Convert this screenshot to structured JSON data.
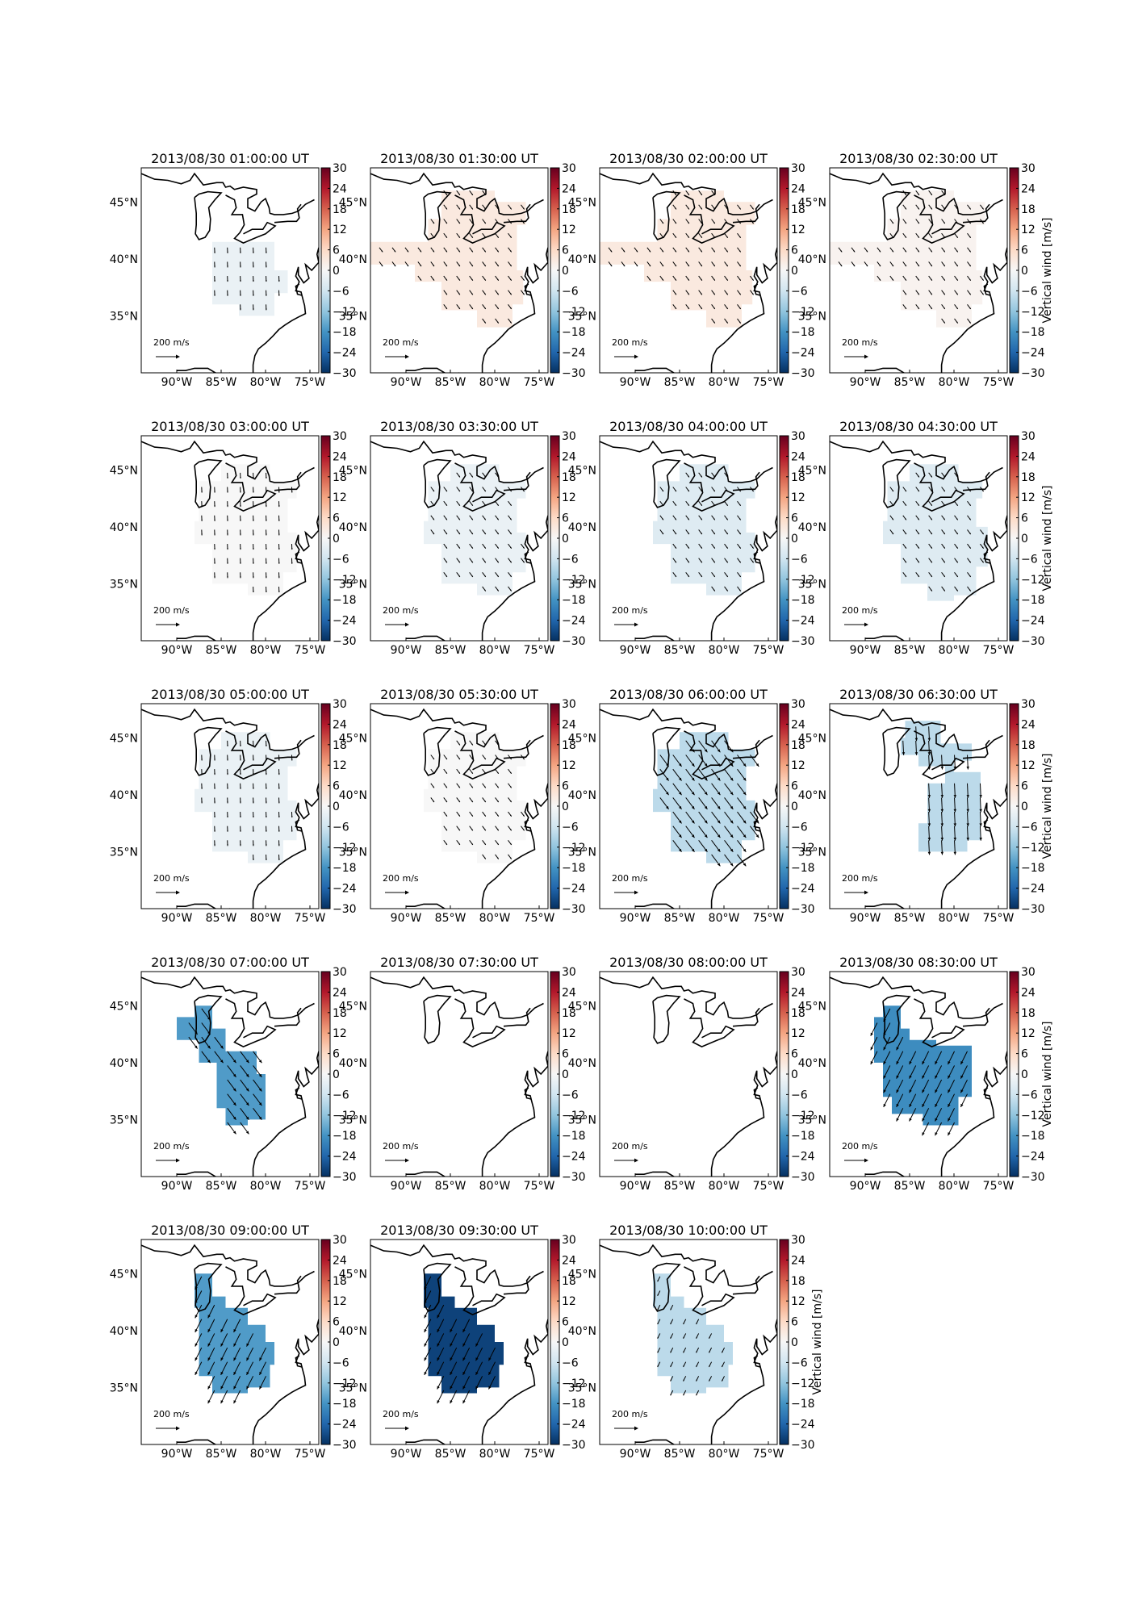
{
  "figure": {
    "colorbar_label": "Vertical wind [m/s]",
    "colorbar_ticks": [
      "30",
      "24",
      "18",
      "12",
      "6",
      "0",
      "−6",
      "−12",
      "−18",
      "−24",
      "−30"
    ],
    "lon_ticks": [
      "90°W",
      "85°W",
      "80°W",
      "75°W"
    ],
    "lat_ticks": [
      "45°N",
      "40°N",
      "35°N"
    ],
    "scale_label": "200 m/s",
    "colormap": [
      "#67001f",
      "#b2182b",
      "#d6604d",
      "#f4a582",
      "#fddbc7",
      "#f7f7f7",
      "#d1e5f0",
      "#92c5de",
      "#4393c3",
      "#2166ac",
      "#053061"
    ]
  },
  "panels": [
    {
      "title": "2013/08/30 01:00:00 UT",
      "vertical_wind": -2,
      "region": "A",
      "arrow": "short-south"
    },
    {
      "title": "2013/08/30 01:30:00 UT",
      "vertical_wind": 3,
      "region": "B",
      "arrow": "short-southeast"
    },
    {
      "title": "2013/08/30 02:00:00 UT",
      "vertical_wind": 3,
      "region": "B",
      "arrow": "short-southeast"
    },
    {
      "title": "2013/08/30 02:30:00 UT",
      "vertical_wind": 1,
      "region": "B",
      "arrow": "short-southeast"
    },
    {
      "title": "2013/08/30 03:00:00 UT",
      "vertical_wind": 0,
      "region": "C",
      "arrow": "short-south"
    },
    {
      "title": "2013/08/30 03:30:00 UT",
      "vertical_wind": -2,
      "region": "C",
      "arrow": "short-southeast"
    },
    {
      "title": "2013/08/30 04:00:00 UT",
      "vertical_wind": -4,
      "region": "C",
      "arrow": "short-southeast"
    },
    {
      "title": "2013/08/30 04:30:00 UT",
      "vertical_wind": -4,
      "region": "D",
      "arrow": "short-southeast"
    },
    {
      "title": "2013/08/30 05:00:00 UT",
      "vertical_wind": -2,
      "region": "C",
      "arrow": "short-south"
    },
    {
      "title": "2013/08/30 05:30:00 UT",
      "vertical_wind": 0,
      "region": "C",
      "arrow": "short-southeast"
    },
    {
      "title": "2013/08/30 06:00:00 UT",
      "vertical_wind": -8,
      "region": "C",
      "arrow": "long-southeast"
    },
    {
      "title": "2013/08/30 06:30:00 UT",
      "vertical_wind": -8,
      "region": "E",
      "arrow": "long-south"
    },
    {
      "title": "2013/08/30 07:00:00 UT",
      "vertical_wind": -17,
      "region": "F",
      "arrow": "long-southeast"
    },
    {
      "title": "2013/08/30 07:30:00 UT",
      "vertical_wind": null,
      "region": "none",
      "arrow": "none"
    },
    {
      "title": "2013/08/30 08:00:00 UT",
      "vertical_wind": null,
      "region": "none",
      "arrow": "none"
    },
    {
      "title": "2013/08/30 08:30:00 UT",
      "vertical_wind": -19,
      "region": "G",
      "arrow": "long-southwest"
    },
    {
      "title": "2013/08/30 09:00:00 UT",
      "vertical_wind": -17,
      "region": "H",
      "arrow": "long-southwest"
    },
    {
      "title": "2013/08/30 09:30:00 UT",
      "vertical_wind": -28,
      "region": "H",
      "arrow": "long-southwest"
    },
    {
      "title": "2013/08/30 10:00:00 UT",
      "vertical_wind": -8,
      "region": "H",
      "arrow": "short-southwest"
    }
  ]
}
